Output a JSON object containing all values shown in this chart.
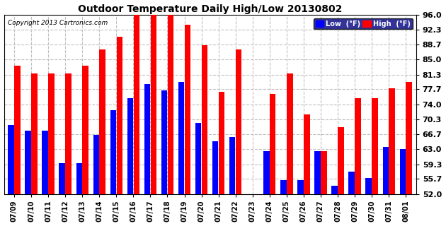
{
  "title": "Outdoor Temperature Daily High/Low 20130802",
  "copyright": "Copyright 2013 Cartronics.com",
  "legend_low": "Low  (°F)",
  "legend_high": "High  (°F)",
  "dates": [
    "07/09",
    "07/10",
    "07/11",
    "07/12",
    "07/13",
    "07/14",
    "07/15",
    "07/16",
    "07/17",
    "07/18",
    "07/19",
    "07/20",
    "07/21",
    "07/22",
    "07/23",
    "07/24",
    "07/25",
    "07/26",
    "07/27",
    "07/28",
    "07/29",
    "07/30",
    "07/31",
    "08/01"
  ],
  "highs": [
    83.5,
    81.5,
    81.5,
    81.5,
    83.5,
    87.5,
    90.5,
    96.0,
    96.0,
    96.0,
    93.5,
    88.5,
    77.0,
    87.5,
    null,
    76.5,
    81.5,
    71.5,
    62.5,
    68.5,
    75.5,
    75.5,
    78.0,
    79.5
  ],
  "lows": [
    69.0,
    67.5,
    67.5,
    59.5,
    59.5,
    66.5,
    72.5,
    75.5,
    79.0,
    77.5,
    79.5,
    69.5,
    65.0,
    66.0,
    null,
    62.5,
    55.5,
    55.5,
    62.5,
    54.0,
    57.5,
    56.0,
    63.5,
    63.0
  ],
  "ymin": 52.0,
  "ymax": 96.0,
  "yticks": [
    52.0,
    55.7,
    59.3,
    63.0,
    66.7,
    70.3,
    74.0,
    77.7,
    81.3,
    85.0,
    88.7,
    92.3,
    96.0
  ],
  "bar_width": 0.35,
  "high_color": "#ff0000",
  "low_color": "#0000ff",
  "bg_color": "#ffffff",
  "grid_color": "#c0c0c0",
  "title_color": "#000000",
  "copyright_color": "#000000",
  "legend_bg": "#000080"
}
